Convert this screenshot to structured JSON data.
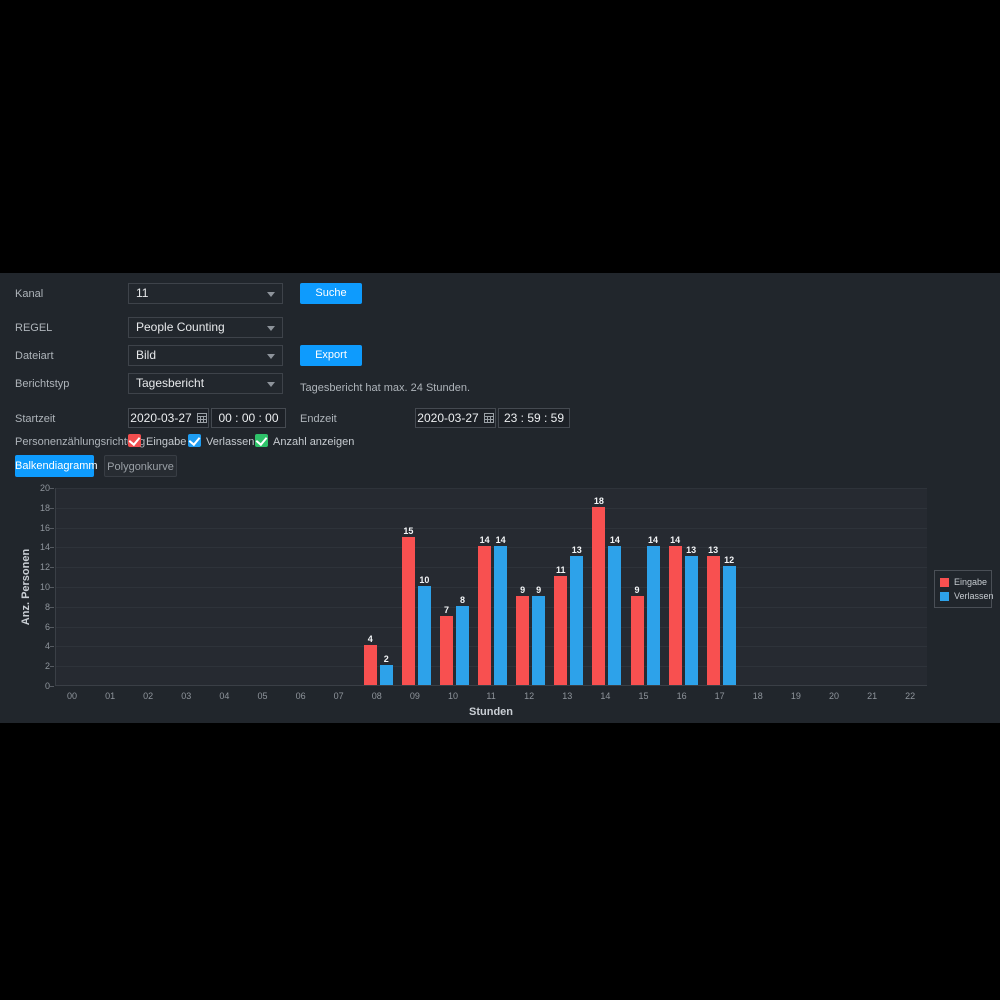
{
  "form": {
    "kanal": {
      "label": "Kanal",
      "value": "11"
    },
    "regel": {
      "label": "REGEL",
      "value": "People Counting"
    },
    "dateiart": {
      "label": "Dateiart",
      "value": "Bild"
    },
    "berichtstyp": {
      "label": "Berichtstyp",
      "value": "Tagesbericht"
    },
    "note": "Tagesbericht hat max. 24 Stunden.",
    "suche_label": "Suche",
    "export_label": "Export",
    "startzeit": {
      "label": "Startzeit",
      "date": "2020-03-27",
      "time": "00 : 00 : 00"
    },
    "endzeit": {
      "label": "Endzeit",
      "date": "2020-03-27",
      "time": "23 : 59 : 59"
    },
    "direction": {
      "label": "Personenzählungsrichtung",
      "options": [
        {
          "label": "Eingabe",
          "color": "#f24e4e",
          "checked": true
        },
        {
          "label": "Verlassen",
          "color": "#1e9df2",
          "checked": true
        },
        {
          "label": "Anzahl anzeigen",
          "color": "#2ec269",
          "checked": true
        }
      ]
    }
  },
  "tabs": {
    "bar": "Balkendiagramm",
    "polygon": "Polygonkurve"
  },
  "chart_data": {
    "type": "bar",
    "title": "",
    "xlabel": "Stunden",
    "ylabel": "Anz. Personen",
    "ylim": [
      0,
      20
    ],
    "ytick_step": 2,
    "grid": true,
    "legend_position": "right",
    "show_values": true,
    "categories": [
      "00",
      "01",
      "02",
      "03",
      "04",
      "05",
      "06",
      "07",
      "08",
      "09",
      "10",
      "11",
      "12",
      "13",
      "14",
      "15",
      "16",
      "17",
      "18",
      "19",
      "20",
      "21",
      "22"
    ],
    "series": [
      {
        "name": "Eingabe",
        "color": "#f85050",
        "values": [
          0,
          0,
          0,
          0,
          0,
          0,
          0,
          0,
          4,
          15,
          7,
          14,
          9,
          11,
          18,
          9,
          14,
          13,
          0,
          0,
          0,
          0,
          0
        ]
      },
      {
        "name": "Verlassen",
        "color": "#2da2ea",
        "values": [
          0,
          0,
          0,
          0,
          0,
          0,
          0,
          0,
          2,
          10,
          8,
          14,
          9,
          13,
          14,
          14,
          13,
          12,
          0,
          0,
          0,
          0,
          0
        ]
      }
    ]
  }
}
